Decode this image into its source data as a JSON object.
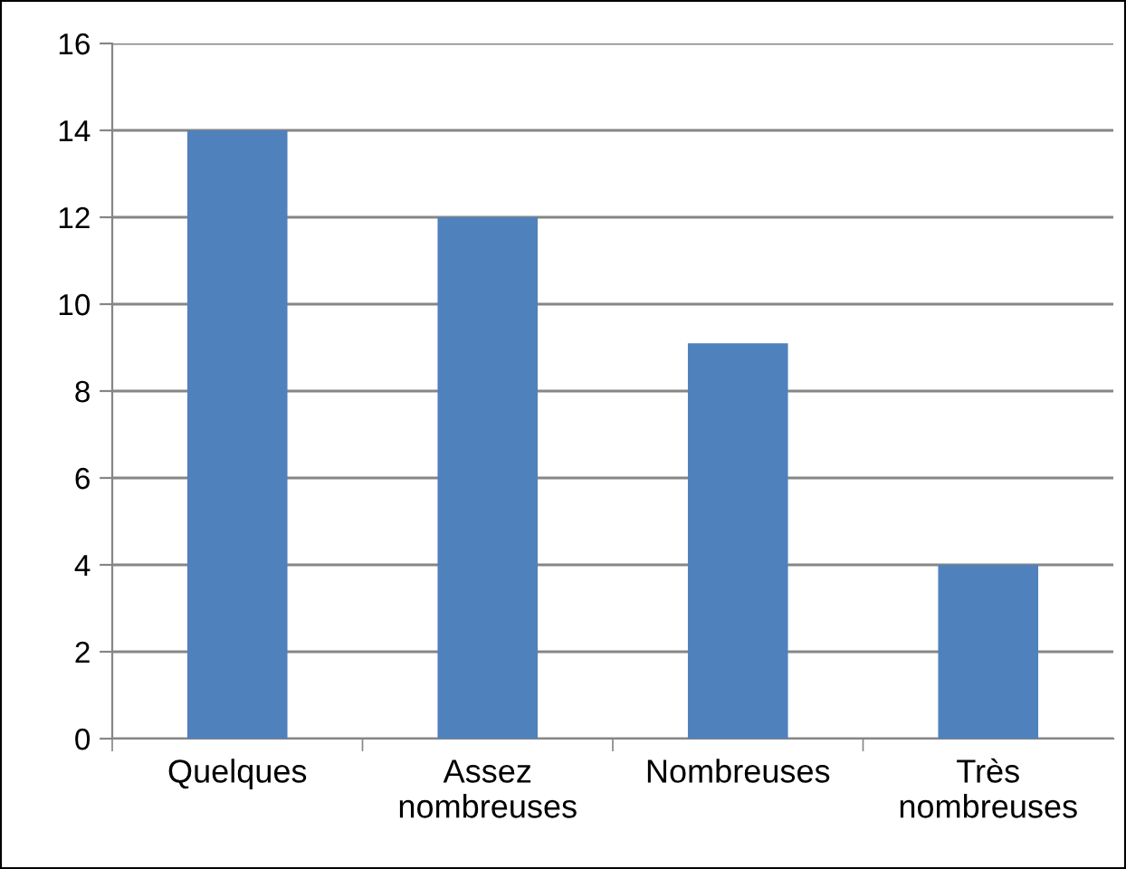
{
  "chart_data": {
    "type": "bar",
    "categories": [
      "Quelques",
      "Assez\nnombreuses",
      "Nombreuses",
      "Très\nnombreuses"
    ],
    "values": [
      14,
      12,
      9.1,
      4
    ],
    "color": "#4f81bd",
    "ylim": [
      0,
      16
    ],
    "yticks": [
      0,
      2,
      4,
      6,
      8,
      10,
      12,
      14,
      16
    ],
    "grid": "y",
    "legend": false
  }
}
